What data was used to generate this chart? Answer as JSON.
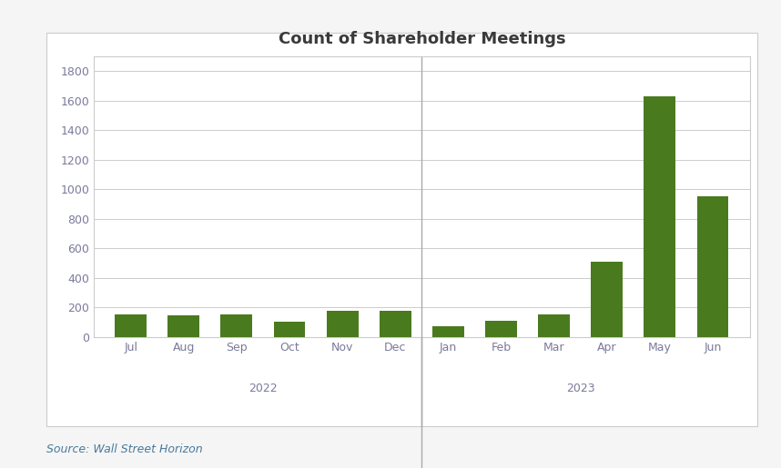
{
  "title": "Count of Shareholder Meetings",
  "source": "Source: Wall Street Horizon",
  "months": [
    "Jul",
    "Aug",
    "Sep",
    "Oct",
    "Nov",
    "Dec",
    "Jan",
    "Feb",
    "Mar",
    "Apr",
    "May",
    "Jun"
  ],
  "values": [
    150,
    145,
    150,
    105,
    175,
    180,
    75,
    110,
    155,
    510,
    1630,
    950
  ],
  "bar_color": "#4a7a1e",
  "ylim": [
    0,
    1900
  ],
  "yticks": [
    0,
    200,
    400,
    600,
    800,
    1000,
    1200,
    1400,
    1600,
    1800
  ],
  "title_color": "#3a3a3a",
  "source_color": "#4a7a9b",
  "background_color": "#f5f5f5",
  "chart_bg": "#ffffff",
  "grid_color": "#cccccc",
  "tick_color": "#7a7a9b",
  "separator_color": "#aaaaaa",
  "border_color": "#cccccc",
  "year_groups": [
    {
      "label": "2022",
      "start": 0,
      "end": 5
    },
    {
      "label": "2023",
      "start": 6,
      "end": 11
    }
  ]
}
